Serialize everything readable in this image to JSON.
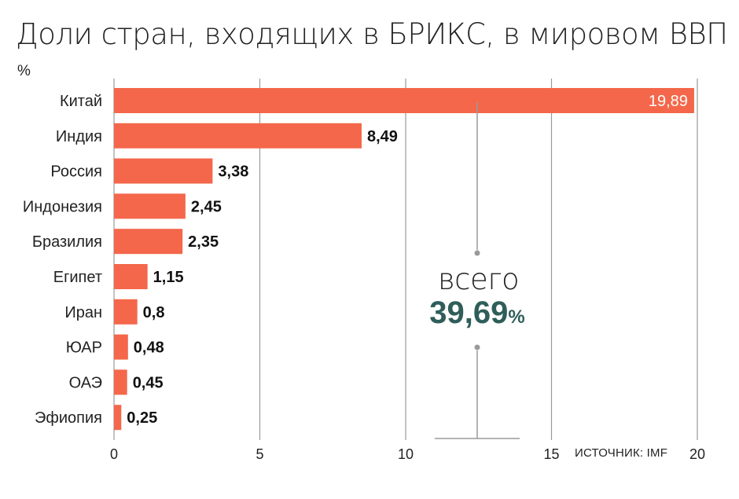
{
  "colors": {
    "bar": "#f4674a",
    "grid": "#9a9a9a",
    "total": "#2f5e59",
    "connector": "#9a9a9a"
  },
  "chart_data": {
    "type": "bar",
    "orientation": "horizontal",
    "title": "Доли стран, входящих в БРИКС, в мировом ВВП",
    "unit": "%",
    "categories": [
      "Китай",
      "Индия",
      "Россия",
      "Индонезия",
      "Бразилия",
      "Египет",
      "Иран",
      "ЮАР",
      "ОАЭ",
      "Эфиопия"
    ],
    "values": [
      19.89,
      8.49,
      3.38,
      2.45,
      2.35,
      1.15,
      0.8,
      0.48,
      0.45,
      0.25
    ],
    "value_labels": [
      "19,89",
      "8,49",
      "3,38",
      "2,45",
      "2,35",
      "1,15",
      "0,8",
      "0,48",
      "0,45",
      "0,25"
    ],
    "xlim": [
      0,
      20
    ],
    "xticks": [
      0,
      5,
      10,
      15,
      20
    ],
    "xtick_labels": [
      "0",
      "5",
      "10",
      "15",
      "20"
    ],
    "grid": true,
    "source": "ИСТОЧНИК: IMF",
    "total": {
      "label": "всего",
      "value": "39,69",
      "unit": "%"
    }
  }
}
